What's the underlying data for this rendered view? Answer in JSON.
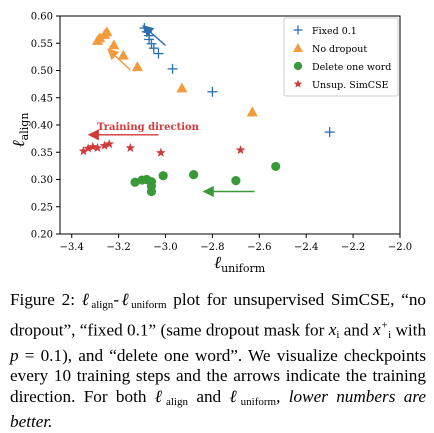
{
  "chart_data": {
    "type": "scatter",
    "xlabel": "ℓ",
    "xlabel_sub": "uniform",
    "ylabel": "ℓ",
    "ylabel_sub": "align",
    "xlim": [
      -3.45,
      -2.0
    ],
    "ylim": [
      0.2,
      0.6
    ],
    "xticks": [
      -3.4,
      -3.2,
      -3.0,
      -2.8,
      -2.6,
      -2.4,
      -2.2,
      -2.0
    ],
    "xtick_labels": [
      "−3.4",
      "−3.2",
      "−3.0",
      "−2.8",
      "−2.6",
      "−2.4",
      "−2.2",
      "−2.0"
    ],
    "yticks": [
      0.2,
      0.25,
      0.3,
      0.35,
      0.4,
      0.45,
      0.5,
      0.55,
      0.6
    ],
    "ytick_labels": [
      "0.20",
      "0.25",
      "0.30",
      "0.35",
      "0.40",
      "0.45",
      "0.50",
      "0.55",
      "0.60"
    ],
    "grid": false,
    "legend_position": "top-right",
    "series": [
      {
        "name": "Fixed 0.1",
        "marker": "plus",
        "color": "#2b6fad",
        "points": [
          [
            -3.09,
            0.578
          ],
          [
            -3.08,
            0.571
          ],
          [
            -3.07,
            0.564
          ],
          [
            -3.07,
            0.557
          ],
          [
            -3.06,
            0.549
          ],
          [
            -3.05,
            0.541
          ],
          [
            -3.03,
            0.531
          ],
          [
            -2.97,
            0.503
          ],
          [
            -2.8,
            0.461
          ],
          [
            -2.3,
            0.387
          ]
        ]
      },
      {
        "name": "No dropout",
        "marker": "triangle",
        "color": "#f59a3a",
        "points": [
          [
            -3.29,
            0.555
          ],
          [
            -3.28,
            0.56
          ],
          [
            -3.26,
            0.566
          ],
          [
            -3.25,
            0.571
          ],
          [
            -3.22,
            0.547
          ],
          [
            -3.18,
            0.528
          ],
          [
            -3.12,
            0.507
          ],
          [
            -2.93,
            0.468
          ],
          [
            -2.63,
            0.424
          ]
        ]
      },
      {
        "name": "Delete one word",
        "marker": "circle",
        "color": "#3a9a3a",
        "points": [
          [
            -3.13,
            0.295
          ],
          [
            -3.1,
            0.299
          ],
          [
            -3.08,
            0.3
          ],
          [
            -3.06,
            0.296
          ],
          [
            -3.06,
            0.288
          ],
          [
            -3.06,
            0.278
          ],
          [
            -3.01,
            0.307
          ],
          [
            -2.88,
            0.309
          ],
          [
            -2.7,
            0.298
          ],
          [
            -2.53,
            0.324
          ]
        ]
      },
      {
        "name": "Unsup. SimCSE",
        "marker": "star",
        "color": "#d03a3a",
        "points": [
          [
            -3.35,
            0.352
          ],
          [
            -3.33,
            0.357
          ],
          [
            -3.31,
            0.36
          ],
          [
            -3.29,
            0.358
          ],
          [
            -3.26,
            0.362
          ],
          [
            -3.24,
            0.365
          ],
          [
            -3.15,
            0.358
          ],
          [
            -3.02,
            0.349
          ],
          [
            -2.68,
            0.354
          ]
        ]
      }
    ],
    "annotations": {
      "training_direction_label": "Training direction",
      "arrows": [
        {
          "color": "#2b6fad",
          "from": [
            -3.0,
            0.546
          ],
          "to": [
            -3.09,
            0.58
          ]
        },
        {
          "color": "#f59a3a",
          "from": [
            -3.15,
            0.501
          ],
          "to": [
            -3.24,
            0.537
          ]
        },
        {
          "color": "#d03a3a",
          "from": [
            -3.03,
            0.382
          ],
          "to": [
            -3.32,
            0.382
          ]
        },
        {
          "color": "#3a9a3a",
          "from": [
            -2.62,
            0.278
          ],
          "to": [
            -2.83,
            0.278
          ]
        }
      ]
    }
  },
  "caption": {
    "fig_label": "Figure 2:",
    "ell": "ℓ",
    "align": "align",
    "uniform": "uniform",
    "plot_for": "plot for unsupervised SimCSE,",
    "line2a": "“no dropout”, “fixed 0.1” (same dropout mask for",
    "xi": "x",
    "i": "i",
    "and": "and",
    "xplus": "x",
    "plus": "+",
    "with": "with",
    "p_eq": "p",
    "val": "= 0.1), and “delete one word”.  We",
    "line4": "visualize checkpoints every 10 training steps and the",
    "line5": "arrows indicate the training direction.  For both",
    "line6_and": "and",
    "line6_tail": "lower numbers are better."
  }
}
